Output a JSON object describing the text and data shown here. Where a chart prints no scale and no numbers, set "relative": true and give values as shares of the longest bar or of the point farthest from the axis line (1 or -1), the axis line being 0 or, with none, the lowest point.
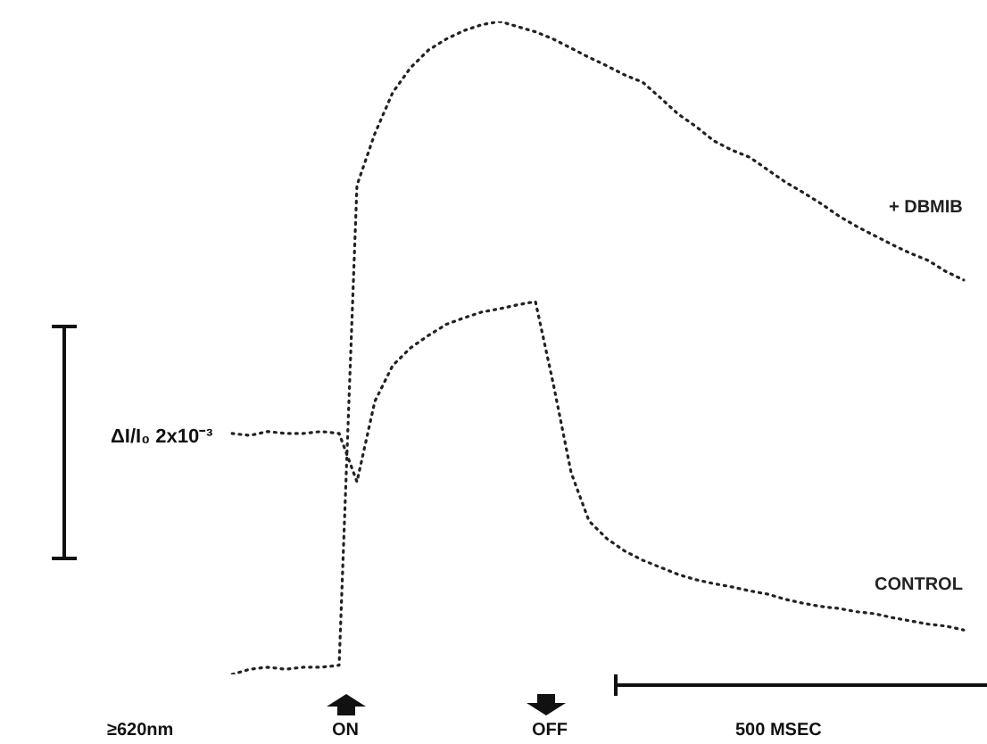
{
  "chart_data": {
    "type": "line",
    "relative": true,
    "line_style": "dotted",
    "marker": "none",
    "legend": false,
    "categories": [
      null,
      null,
      null,
      null,
      null,
      null,
      null,
      null,
      null,
      null,
      null,
      null,
      null,
      null,
      null,
      null,
      null,
      null,
      null,
      null,
      null,
      null,
      null,
      null,
      null,
      null,
      null,
      null,
      null,
      null,
      null,
      null,
      null,
      null,
      null,
      null,
      null,
      null,
      null,
      null,
      null,
      null
    ],
    "series": [
      {
        "name": "+ DBMIB",
        "color": "#222222",
        "values": [
          0,
          0.008,
          0.011,
          0.008,
          0.011,
          0.011,
          0.014,
          0.749,
          0.828,
          0.891,
          0.929,
          0.956,
          0.973,
          0.986,
          0.995,
          1,
          0.992,
          0.984,
          0.973,
          0.959,
          0.945,
          0.932,
          0.918,
          0.907,
          0.883,
          0.858,
          0.839,
          0.817,
          0.803,
          0.792,
          0.773,
          0.754,
          0.738,
          0.721,
          0.702,
          0.686,
          0.672,
          0.658,
          0.645,
          0.634,
          0.617,
          0.604
        ]
      },
      {
        "name": "CONTROL",
        "color": "#222222",
        "values": [
          0.369,
          0.366,
          0.372,
          0.369,
          0.369,
          0.372,
          0.369,
          0.295,
          0.418,
          0.473,
          0.5,
          0.519,
          0.536,
          0.546,
          0.555,
          0.56,
          0.566,
          0.571,
          0.445,
          0.309,
          0.235,
          0.208,
          0.189,
          0.175,
          0.164,
          0.153,
          0.145,
          0.139,
          0.134,
          0.128,
          0.123,
          0.115,
          0.109,
          0.104,
          0.101,
          0.096,
          0.093,
          0.087,
          0.082,
          0.077,
          0.074,
          0.068
        ]
      }
    ],
    "annotations": [
      "ΔI/I₀ 2x10⁻³",
      "500 MSEC",
      "≥620nm",
      "ON",
      "OFF"
    ]
  }
}
